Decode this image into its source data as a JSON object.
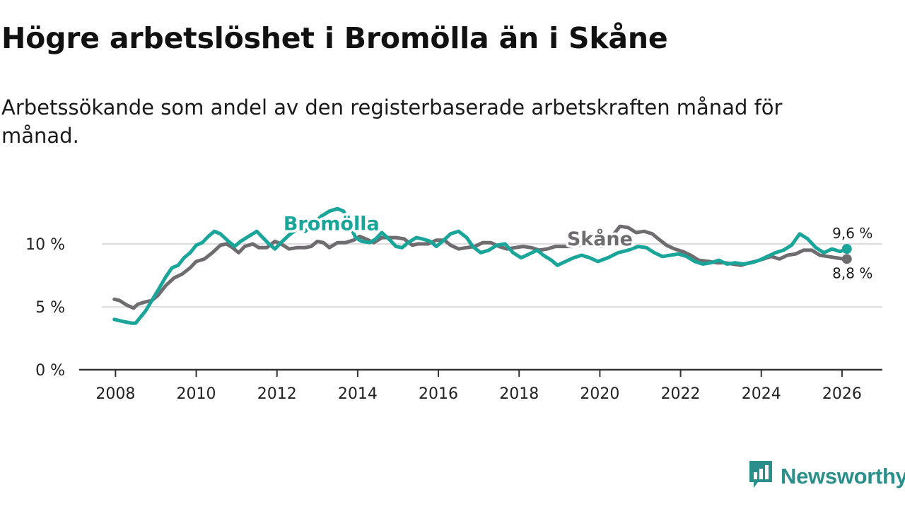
{
  "chart_data": {
    "type": "line",
    "title": "Högre arbetslöshet i Bromölla än i Skåne",
    "subtitle": "Arbetssökande som andel av den registerbaserade arbetskraften månad för månad.",
    "xlabel": "",
    "ylabel": "",
    "xlim": [
      2007.1,
      2027.0
    ],
    "ylim": [
      0,
      13
    ],
    "y_ticks": [
      {
        "value": 0,
        "label": "0 %"
      },
      {
        "value": 5,
        "label": "5 %"
      },
      {
        "value": 10,
        "label": "10 %"
      }
    ],
    "x_ticks": [
      {
        "value": 2008,
        "label": "2008"
      },
      {
        "value": 2010,
        "label": "2010"
      },
      {
        "value": 2012,
        "label": "2012"
      },
      {
        "value": 2014,
        "label": "2014"
      },
      {
        "value": 2016,
        "label": "2016"
      },
      {
        "value": 2018,
        "label": "2018"
      },
      {
        "value": 2020,
        "label": "2020"
      },
      {
        "value": 2022,
        "label": "2022"
      },
      {
        "value": 2024,
        "label": "2024"
      },
      {
        "value": 2026,
        "label": "2026"
      }
    ],
    "series": [
      {
        "name": "Skåne",
        "color": "#6f6c70",
        "label_at": [
          2020.0,
          9.9
        ],
        "end_label": "8,8 %",
        "points": [
          [
            2007.97,
            5.6
          ],
          [
            2008.1,
            5.5
          ],
          [
            2008.3,
            5.1
          ],
          [
            2008.45,
            4.9
          ],
          [
            2008.55,
            5.2
          ],
          [
            2008.75,
            5.4
          ],
          [
            2008.9,
            5.5
          ],
          [
            2009.05,
            5.9
          ],
          [
            2009.25,
            6.7
          ],
          [
            2009.45,
            7.3
          ],
          [
            2009.65,
            7.6
          ],
          [
            2009.85,
            8.1
          ],
          [
            2010.0,
            8.6
          ],
          [
            2010.2,
            8.8
          ],
          [
            2010.4,
            9.3
          ],
          [
            2010.6,
            9.9
          ],
          [
            2010.75,
            10.0
          ],
          [
            2010.9,
            9.7
          ],
          [
            2011.05,
            9.3
          ],
          [
            2011.2,
            9.8
          ],
          [
            2011.4,
            10.0
          ],
          [
            2011.55,
            9.7
          ],
          [
            2011.75,
            9.7
          ],
          [
            2011.95,
            10.2
          ],
          [
            2012.1,
            10.0
          ],
          [
            2012.3,
            9.6
          ],
          [
            2012.5,
            9.7
          ],
          [
            2012.7,
            9.7
          ],
          [
            2012.85,
            9.8
          ],
          [
            2013.0,
            10.2
          ],
          [
            2013.15,
            10.1
          ],
          [
            2013.3,
            9.7
          ],
          [
            2013.5,
            10.1
          ],
          [
            2013.7,
            10.1
          ],
          [
            2013.9,
            10.3
          ],
          [
            2014.05,
            10.6
          ],
          [
            2014.2,
            10.4
          ],
          [
            2014.4,
            10.1
          ],
          [
            2014.6,
            10.5
          ],
          [
            2014.8,
            10.5
          ],
          [
            2014.95,
            10.5
          ],
          [
            2015.15,
            10.4
          ],
          [
            2015.35,
            9.9
          ],
          [
            2015.5,
            10.0
          ],
          [
            2015.75,
            10.0
          ],
          [
            2015.95,
            10.3
          ],
          [
            2016.15,
            10.3
          ],
          [
            2016.3,
            9.9
          ],
          [
            2016.5,
            9.6
          ],
          [
            2016.7,
            9.7
          ],
          [
            2016.9,
            9.8
          ],
          [
            2017.1,
            10.1
          ],
          [
            2017.3,
            10.1
          ],
          [
            2017.5,
            9.8
          ],
          [
            2017.7,
            9.6
          ],
          [
            2017.9,
            9.7
          ],
          [
            2018.1,
            9.8
          ],
          [
            2018.3,
            9.7
          ],
          [
            2018.5,
            9.5
          ],
          [
            2018.7,
            9.6
          ],
          [
            2018.9,
            9.8
          ],
          [
            2019.1,
            9.8
          ],
          [
            2019.3,
            9.8
          ],
          [
            2019.5,
            9.9
          ],
          [
            2019.8,
            9.9
          ],
          [
            2020.05,
            9.8
          ],
          [
            2020.2,
            10.0
          ],
          [
            2020.35,
            10.8
          ],
          [
            2020.5,
            11.4
          ],
          [
            2020.7,
            11.3
          ],
          [
            2020.9,
            10.9
          ],
          [
            2021.1,
            11.0
          ],
          [
            2021.3,
            10.8
          ],
          [
            2021.45,
            10.4
          ],
          [
            2021.65,
            9.9
          ],
          [
            2021.85,
            9.6
          ],
          [
            2022.05,
            9.4
          ],
          [
            2022.25,
            9.1
          ],
          [
            2022.45,
            8.7
          ],
          [
            2022.7,
            8.6
          ],
          [
            2022.9,
            8.5
          ],
          [
            2023.1,
            8.5
          ],
          [
            2023.3,
            8.4
          ],
          [
            2023.5,
            8.3
          ],
          [
            2023.7,
            8.5
          ],
          [
            2023.85,
            8.6
          ],
          [
            2024.05,
            8.8
          ],
          [
            2024.25,
            9.0
          ],
          [
            2024.45,
            8.8
          ],
          [
            2024.65,
            9.1
          ],
          [
            2024.85,
            9.2
          ],
          [
            2025.05,
            9.5
          ],
          [
            2025.25,
            9.5
          ],
          [
            2025.45,
            9.1
          ],
          [
            2025.65,
            9.0
          ],
          [
            2025.85,
            8.9
          ],
          [
            2026.05,
            8.8
          ],
          [
            2026.12,
            8.8
          ]
        ]
      },
      {
        "name": "Bromölla",
        "color": "#1aa59a",
        "label_at": [
          2013.35,
          11.1
        ],
        "end_label": "9,6 %",
        "points": [
          [
            2007.97,
            4.0
          ],
          [
            2008.1,
            3.9
          ],
          [
            2008.25,
            3.8
          ],
          [
            2008.4,
            3.7
          ],
          [
            2008.5,
            3.7
          ],
          [
            2008.6,
            4.1
          ],
          [
            2008.75,
            4.7
          ],
          [
            2008.9,
            5.5
          ],
          [
            2009.05,
            6.3
          ],
          [
            2009.25,
            7.4
          ],
          [
            2009.4,
            8.1
          ],
          [
            2009.55,
            8.3
          ],
          [
            2009.7,
            8.9
          ],
          [
            2009.85,
            9.3
          ],
          [
            2010.0,
            9.9
          ],
          [
            2010.15,
            10.1
          ],
          [
            2010.3,
            10.6
          ],
          [
            2010.45,
            11.0
          ],
          [
            2010.6,
            10.8
          ],
          [
            2010.8,
            10.2
          ],
          [
            2010.95,
            9.8
          ],
          [
            2011.1,
            10.2
          ],
          [
            2011.3,
            10.6
          ],
          [
            2011.5,
            11.0
          ],
          [
            2011.65,
            10.5
          ],
          [
            2011.8,
            10.0
          ],
          [
            2011.95,
            9.6
          ],
          [
            2012.1,
            10.1
          ],
          [
            2012.3,
            10.7
          ],
          [
            2012.5,
            11.2
          ],
          [
            2012.7,
            11.0
          ],
          [
            2012.9,
            11.6
          ],
          [
            2013.1,
            12.2
          ],
          [
            2013.3,
            12.6
          ],
          [
            2013.5,
            12.8
          ],
          [
            2013.65,
            12.6
          ],
          [
            2013.8,
            11.5
          ],
          [
            2013.95,
            10.5
          ],
          [
            2014.1,
            10.2
          ],
          [
            2014.3,
            10.1
          ],
          [
            2014.45,
            10.4
          ],
          [
            2014.6,
            10.9
          ],
          [
            2014.8,
            10.3
          ],
          [
            2014.95,
            9.8
          ],
          [
            2015.1,
            9.7
          ],
          [
            2015.25,
            10.1
          ],
          [
            2015.45,
            10.5
          ],
          [
            2015.6,
            10.4
          ],
          [
            2015.8,
            10.2
          ],
          [
            2015.95,
            9.8
          ],
          [
            2016.1,
            10.2
          ],
          [
            2016.3,
            10.8
          ],
          [
            2016.5,
            11.0
          ],
          [
            2016.7,
            10.5
          ],
          [
            2016.85,
            9.8
          ],
          [
            2017.05,
            9.3
          ],
          [
            2017.25,
            9.5
          ],
          [
            2017.45,
            9.9
          ],
          [
            2017.65,
            10.0
          ],
          [
            2017.85,
            9.3
          ],
          [
            2018.05,
            8.9
          ],
          [
            2018.25,
            9.2
          ],
          [
            2018.45,
            9.5
          ],
          [
            2018.6,
            9.1
          ],
          [
            2018.8,
            8.7
          ],
          [
            2018.95,
            8.3
          ],
          [
            2019.15,
            8.6
          ],
          [
            2019.35,
            8.9
          ],
          [
            2019.55,
            9.1
          ],
          [
            2019.75,
            8.9
          ],
          [
            2019.95,
            8.6
          ],
          [
            2020.2,
            8.9
          ],
          [
            2020.45,
            9.3
          ],
          [
            2020.7,
            9.5
          ],
          [
            2020.95,
            9.8
          ],
          [
            2021.15,
            9.7
          ],
          [
            2021.35,
            9.3
          ],
          [
            2021.55,
            9.0
          ],
          [
            2021.75,
            9.1
          ],
          [
            2021.95,
            9.2
          ],
          [
            2022.15,
            9.0
          ],
          [
            2022.35,
            8.6
          ],
          [
            2022.55,
            8.4
          ],
          [
            2022.75,
            8.5
          ],
          [
            2022.95,
            8.7
          ],
          [
            2023.15,
            8.4
          ],
          [
            2023.35,
            8.5
          ],
          [
            2023.55,
            8.4
          ],
          [
            2023.75,
            8.5
          ],
          [
            2023.95,
            8.7
          ],
          [
            2024.15,
            9.0
          ],
          [
            2024.35,
            9.3
          ],
          [
            2024.55,
            9.5
          ],
          [
            2024.75,
            9.9
          ],
          [
            2024.95,
            10.8
          ],
          [
            2025.15,
            10.4
          ],
          [
            2025.35,
            9.7
          ],
          [
            2025.55,
            9.3
          ],
          [
            2025.75,
            9.6
          ],
          [
            2025.95,
            9.4
          ],
          [
            2026.12,
            9.6
          ]
        ]
      }
    ]
  },
  "brand": {
    "name": "Newsworthy",
    "icon": "newsworthy-logo-icon",
    "color": "#2a8f8a"
  }
}
